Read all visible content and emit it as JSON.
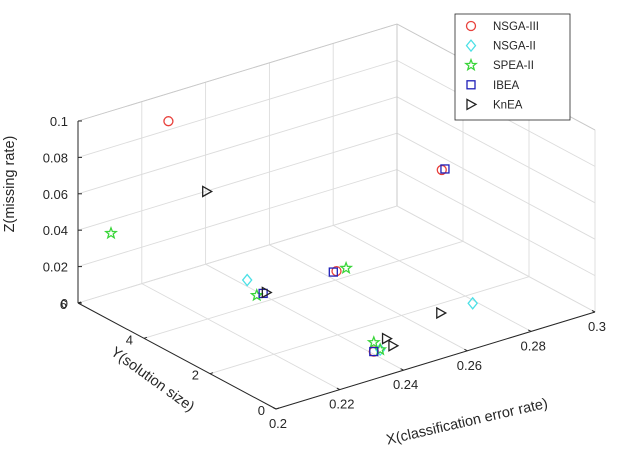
{
  "chart_data": {
    "type": "scatter",
    "projection": "3d",
    "grid": true,
    "box": "open 3d axes box",
    "legend": {
      "placement": "top-right"
    },
    "xlabel": "X(classification error rate)",
    "ylabel": "Y(solution size)",
    "zlabel": "Z(missing rate)",
    "xlim": [
      0.2,
      0.3
    ],
    "ylim": [
      0,
      6
    ],
    "zlim": [
      0,
      0.1
    ],
    "xticks": [
      0.2,
      0.22,
      0.24,
      0.26,
      0.28,
      0.3
    ],
    "yticks": [
      0,
      2,
      4,
      6
    ],
    "zticks": [
      0,
      0.02,
      0.04,
      0.06,
      0.08,
      0.1
    ],
    "xtick_labels": [
      "0.2",
      "0.22",
      "0.24",
      "0.26",
      "0.28",
      "0.3"
    ],
    "ytick_labels": [
      "0",
      "2",
      "4",
      "6"
    ],
    "ztick_labels": [
      "0",
      "0.02",
      "0.04",
      "0.06",
      "0.08",
      "0.1"
    ],
    "series": [
      {
        "name": "NSGA-III",
        "marker": "circle",
        "color": "#e8413c",
        "points": [
          {
            "x": 0.218,
            "y": 5.0,
            "z": 0.1
          },
          {
            "x": 0.283,
            "y": 3.0,
            "z": 0.058
          },
          {
            "x": 0.25,
            "y": 3.0,
            "z": 0.02
          },
          {
            "x": 0.241,
            "y": 1.0,
            "z": 0.0
          }
        ]
      },
      {
        "name": "NSGA-II",
        "marker": "diamond",
        "color": "#4de0e6",
        "points": [
          {
            "x": 0.222,
            "y": 3.0,
            "z": 0.03
          },
          {
            "x": 0.272,
            "y": 1.0,
            "z": 0.01
          },
          {
            "x": 0.243,
            "y": 1.0,
            "z": 0.0
          }
        ]
      },
      {
        "name": "SPEA-II",
        "marker": "pentagram",
        "color": "#3bd53b",
        "points": [
          {
            "x": 0.2,
            "y": 5.0,
            "z": 0.048
          },
          {
            "x": 0.225,
            "y": 3.0,
            "z": 0.02
          },
          {
            "x": 0.253,
            "y": 3.0,
            "z": 0.02
          },
          {
            "x": 0.241,
            "y": 1.0,
            "z": 0.005
          },
          {
            "x": 0.243,
            "y": 1.0,
            "z": 0.0
          }
        ]
      },
      {
        "name": "IBEA",
        "marker": "square",
        "color": "#2020b8",
        "points": [
          {
            "x": 0.284,
            "y": 3.0,
            "z": 0.058
          },
          {
            "x": 0.227,
            "y": 3.0,
            "z": 0.02
          },
          {
            "x": 0.249,
            "y": 3.0,
            "z": 0.02
          },
          {
            "x": 0.241,
            "y": 1.0,
            "z": 0.0
          }
        ]
      },
      {
        "name": "KnEA",
        "marker": "triangle-right",
        "color": "#222222",
        "points": [
          {
            "x": 0.23,
            "y": 5.0,
            "z": 0.055
          },
          {
            "x": 0.228,
            "y": 3.0,
            "z": 0.02
          },
          {
            "x": 0.262,
            "y": 1.0,
            "z": 0.01
          },
          {
            "x": 0.245,
            "y": 1.0,
            "z": 0.005
          },
          {
            "x": 0.247,
            "y": 1.0,
            "z": 0.0
          }
        ]
      }
    ]
  }
}
